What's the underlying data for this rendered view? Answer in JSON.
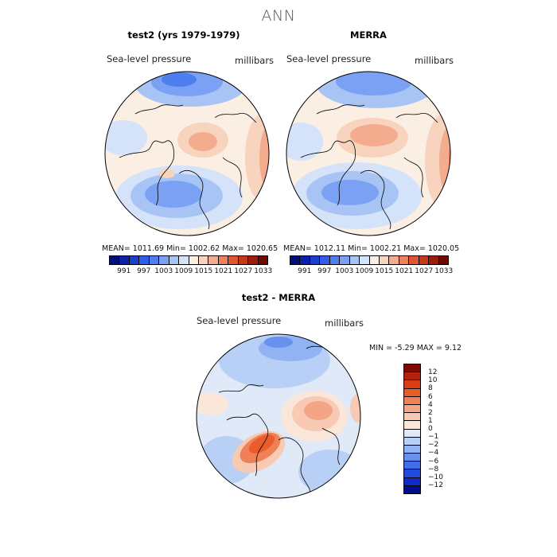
{
  "title": "ANN",
  "panels": [
    {
      "title": "test2 (yrs 1979-1979)",
      "variable": "Sea-level pressure",
      "units": "millibars",
      "stats": "MEAN= 1011.69   Min= 1002.62   Max= 1020.65"
    },
    {
      "title": "MERRA",
      "variable": "Sea-level pressure",
      "units": "millibars",
      "stats": "MEAN= 1012.11   Min= 1002.21   Max= 1020.05"
    }
  ],
  "diff": {
    "title": "test2 - MERRA",
    "variable": "Sea-level pressure",
    "units": "millibars",
    "stats": "MIN =  -5.29 MAX =   9.12"
  },
  "abs_colorbar": {
    "colors": [
      "#000e7a",
      "#0c22a6",
      "#1b3fd0",
      "#2f5ee8",
      "#4f7eef",
      "#7aa1f3",
      "#a8c4f5",
      "#d4e3fa",
      "#fbeee3",
      "#f8d3bd",
      "#f3ad8e",
      "#ec815c",
      "#e05634",
      "#c83718",
      "#9f1c0a",
      "#6e0a02"
    ],
    "labels": [
      "991",
      "997",
      "1003",
      "1009",
      "1015",
      "1021",
      "1027",
      "1033"
    ]
  },
  "diff_colorbar": {
    "colors": [
      "#7f0a02",
      "#b3230b",
      "#d83d16",
      "#ea5c2b",
      "#f08157",
      "#f4a586",
      "#f8c9b3",
      "#fbe6da",
      "#dfe9f8",
      "#b9d0f6",
      "#91b3f3",
      "#6692ee",
      "#3e6fe8",
      "#214be0",
      "#0e2bc7",
      "#000d8e"
    ],
    "labels": [
      "12",
      "10",
      "8",
      "6",
      "4",
      "2",
      "1",
      "0",
      "−1",
      "−2",
      "−4",
      "−6",
      "−8",
      "−10",
      "−12"
    ]
  }
}
